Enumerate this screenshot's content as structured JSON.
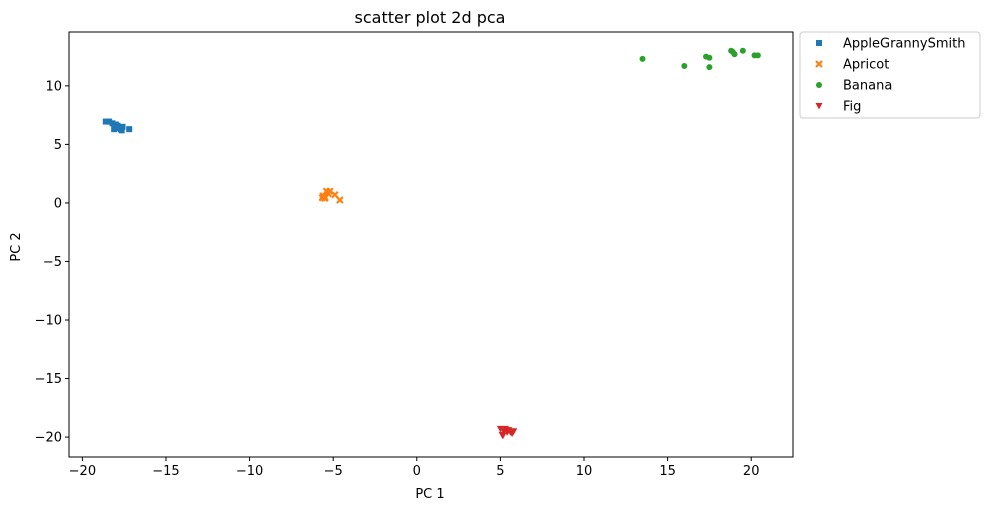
{
  "chart_data": {
    "type": "scatter",
    "title": "scatter plot 2d pca",
    "xlabel": "PC 1",
    "ylabel": "PC 2",
    "xlim": [
      -20.8,
      22.5
    ],
    "ylim": [
      -21.7,
      14.6
    ],
    "xticks": [
      -20,
      -15,
      -10,
      -5,
      0,
      5,
      10,
      15,
      20
    ],
    "yticks": [
      -20,
      -15,
      -10,
      -5,
      0,
      5,
      10
    ],
    "xtick_labels": [
      "−20",
      "−15",
      "−10",
      "−5",
      "0",
      "5",
      "10",
      "15",
      "20"
    ],
    "ytick_labels": [
      "−20",
      "−15",
      "−10",
      "−5",
      "0",
      "5",
      "10"
    ],
    "grid": false,
    "legend_position": "outside-top-right",
    "series": [
      {
        "name": "AppleGrannySmith",
        "marker": "square",
        "color": "#1f77b4",
        "points": [
          [
            -18.6,
            6.95
          ],
          [
            -18.4,
            6.95
          ],
          [
            -18.2,
            6.8
          ],
          [
            -18.0,
            6.7
          ],
          [
            -17.95,
            6.4
          ],
          [
            -18.1,
            6.3
          ],
          [
            -17.7,
            6.3
          ],
          [
            -17.6,
            6.5
          ],
          [
            -17.65,
            6.2
          ],
          [
            -17.2,
            6.3
          ],
          [
            -17.9,
            6.6
          ],
          [
            -17.75,
            6.45
          ]
        ]
      },
      {
        "name": "Apricot",
        "marker": "x",
        "color": "#ff7f0e",
        "points": [
          [
            -5.6,
            0.6
          ],
          [
            -5.5,
            0.5
          ],
          [
            -5.4,
            1.0
          ],
          [
            -5.3,
            0.8
          ],
          [
            -5.2,
            1.0
          ],
          [
            -5.5,
            0.4
          ],
          [
            -4.9,
            0.7
          ],
          [
            -4.6,
            0.25
          ],
          [
            -5.65,
            0.45
          ]
        ]
      },
      {
        "name": "Banana",
        "marker": "circle",
        "color": "#2ca02c",
        "points": [
          [
            13.5,
            12.3
          ],
          [
            16.0,
            11.7
          ],
          [
            17.3,
            12.5
          ],
          [
            17.5,
            12.4
          ],
          [
            17.5,
            11.6
          ],
          [
            18.8,
            13.0
          ],
          [
            18.9,
            12.9
          ],
          [
            19.0,
            12.7
          ],
          [
            19.5,
            13.0
          ],
          [
            20.2,
            12.6
          ],
          [
            20.4,
            12.6
          ]
        ]
      },
      {
        "name": "Fig",
        "marker": "triangle-down",
        "color": "#d62728",
        "points": [
          [
            5.0,
            -19.3
          ],
          [
            5.1,
            -19.8
          ],
          [
            5.2,
            -19.5
          ],
          [
            5.3,
            -19.3
          ],
          [
            5.4,
            -19.6
          ],
          [
            5.5,
            -19.4
          ],
          [
            5.6,
            -19.6
          ],
          [
            5.7,
            -19.7
          ],
          [
            5.8,
            -19.5
          ],
          [
            5.15,
            -19.9
          ],
          [
            5.35,
            -19.4
          ]
        ]
      }
    ]
  }
}
